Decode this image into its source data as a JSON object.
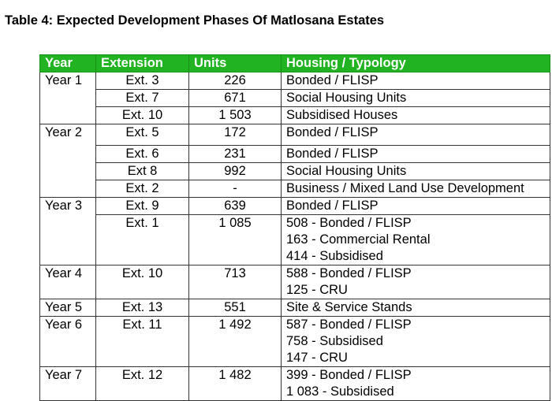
{
  "title": "Table 4: Expected Development Phases Of Matlosana Estates",
  "header_color": "#22b322",
  "columns": [
    "Year",
    "Extension",
    "Units",
    "Housing / Typology"
  ],
  "groups": [
    {
      "year": "Year 1",
      "rows": [
        {
          "ext": "Ext. 3",
          "units": "226",
          "typology": [
            "Bonded / FLISP"
          ]
        },
        {
          "ext": "Ext. 7",
          "units": "671",
          "typology": [
            "Social Housing Units"
          ]
        },
        {
          "ext": "Ext. 10",
          "units": "1 503",
          "typology": [
            "Subsidised Houses"
          ]
        }
      ]
    },
    {
      "year": "Year 2",
      "rows": [
        {
          "ext": "Ext. 5",
          "units": "172",
          "typology": [
            "Bonded / FLISP"
          ]
        },
        {
          "ext": "Ext. 6",
          "units": "231",
          "typology": [
            "Bonded / FLISP"
          ]
        },
        {
          "ext": "Ext 8",
          "units": "992",
          "typology": [
            "Social Housing Units"
          ]
        },
        {
          "ext": "Ext. 2",
          "units": "-",
          "typology": [
            "Business / Mixed Land Use Development"
          ]
        }
      ]
    },
    {
      "year": "Year 3",
      "rows": [
        {
          "ext": "Ext. 9",
          "units": "639",
          "typology": [
            "Bonded / FLISP"
          ]
        },
        {
          "ext": "Ext. 1",
          "units": "1 085",
          "typology": [
            "508 - Bonded / FLISP",
            "163 - Commercial Rental",
            "414 - Subsidised"
          ]
        }
      ]
    },
    {
      "year": "Year 4",
      "rows": [
        {
          "ext": "Ext. 10",
          "units": "713",
          "typology": [
            "588 - Bonded / FLISP",
            "125 - CRU"
          ]
        }
      ]
    },
    {
      "year": "Year 5",
      "rows": [
        {
          "ext": "Ext. 13",
          "units": "551",
          "typology": [
            "Site & Service Stands"
          ]
        }
      ]
    },
    {
      "year": "Year 6",
      "rows": [
        {
          "ext": "Ext. 11",
          "units": "1 492",
          "typology": [
            "587 - Bonded / FLISP",
            "758 - Subsidised",
            "147 -  CRU"
          ]
        }
      ]
    },
    {
      "year": "Year 7",
      "rows": [
        {
          "ext": "Ext. 12",
          "units": "1 482",
          "typology": [
            "399 - Bonded / FLISP",
            "1 083 - Subsidised"
          ]
        }
      ]
    }
  ]
}
